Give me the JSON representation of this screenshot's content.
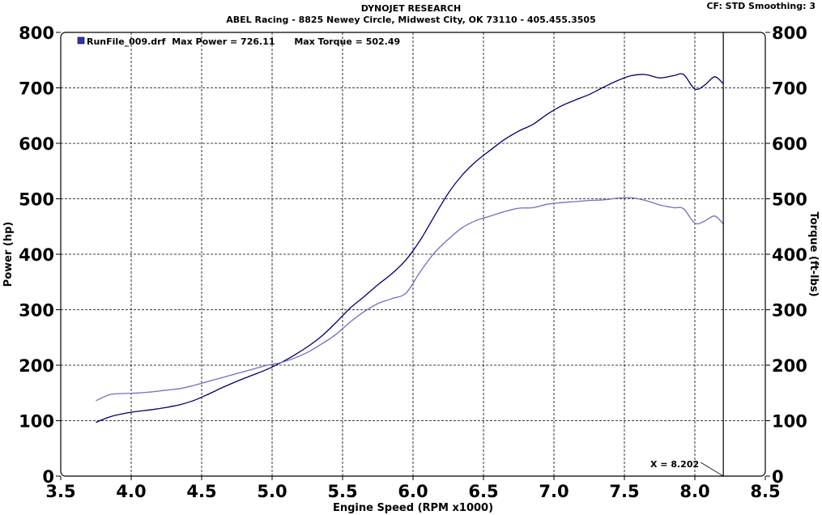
{
  "header": {
    "title": "DYNOJET RESEARCH",
    "subtitle": "ABEL Racing - 8825 Newey Circle, Midwest City, OK 73110 - 405.455.3505",
    "settings": "CF: STD   Smoothing: 3"
  },
  "chart_data": {
    "type": "line",
    "xlabel": "Engine Speed (RPM x1000)",
    "ylabel": "Power (hp)",
    "y2label": "Torque (ft-lbs)",
    "xlim": [
      3.5,
      8.5
    ],
    "ylim": [
      0,
      800
    ],
    "y2lim": [
      0,
      800
    ],
    "x_ticks": [
      "3.5",
      "4.0",
      "4.5",
      "5.0",
      "5.5",
      "6.0",
      "6.5",
      "7.0",
      "7.5",
      "8.0",
      "8.5"
    ],
    "y_ticks": [
      "0",
      "100",
      "200",
      "300",
      "400",
      "500",
      "600",
      "700",
      "800"
    ],
    "grid": true,
    "legend": {
      "run_file": "RunFile_009.drf",
      "max_power_label": "Max Power = 726.11",
      "max_torque_label": "Max Torque = 502.49",
      "position": "top-left"
    },
    "cursor": {
      "x": 8.202,
      "label": "X = 8.202"
    },
    "series": [
      {
        "name": "Power",
        "color": "#00006e",
        "x": [
          3.75,
          3.85,
          3.95,
          4.05,
          4.15,
          4.25,
          4.35,
          4.45,
          4.55,
          4.65,
          4.75,
          4.85,
          4.95,
          5.05,
          5.15,
          5.25,
          5.35,
          5.45,
          5.55,
          5.65,
          5.75,
          5.85,
          5.95,
          6.05,
          6.15,
          6.25,
          6.35,
          6.45,
          6.55,
          6.65,
          6.75,
          6.85,
          6.95,
          7.05,
          7.15,
          7.25,
          7.35,
          7.45,
          7.55,
          7.65,
          7.75,
          7.85,
          7.92,
          8.0,
          8.07,
          8.14,
          8.2
        ],
        "y": [
          97,
          107,
          113,
          117,
          120,
          124,
          129,
          137,
          148,
          160,
          171,
          181,
          191,
          203,
          217,
          233,
          252,
          276,
          302,
          323,
          345,
          365,
          390,
          425,
          468,
          510,
          543,
          568,
          588,
          607,
          622,
          634,
          652,
          667,
          678,
          688,
          701,
          713,
          722,
          724,
          718,
          722,
          724,
          698,
          705,
          720,
          708
        ]
      },
      {
        "name": "Torque",
        "color": "#7070c0",
        "x": [
          3.75,
          3.85,
          3.95,
          4.05,
          4.15,
          4.25,
          4.35,
          4.45,
          4.55,
          4.65,
          4.75,
          4.85,
          4.95,
          5.05,
          5.15,
          5.25,
          5.35,
          5.45,
          5.55,
          5.65,
          5.75,
          5.85,
          5.95,
          6.05,
          6.15,
          6.25,
          6.35,
          6.45,
          6.55,
          6.65,
          6.75,
          6.85,
          6.95,
          7.05,
          7.15,
          7.25,
          7.35,
          7.45,
          7.55,
          7.65,
          7.75,
          7.85,
          7.92,
          8.0,
          8.07,
          8.14,
          8.2
        ],
        "y": [
          136,
          147,
          149,
          150,
          152,
          155,
          158,
          164,
          171,
          178,
          185,
          192,
          199,
          204,
          212,
          223,
          238,
          255,
          277,
          296,
          311,
          320,
          330,
          368,
          402,
          427,
          448,
          461,
          469,
          477,
          483,
          484,
          490,
          493,
          495,
          497,
          498,
          501,
          502,
          497,
          489,
          484,
          482,
          456,
          460,
          469,
          455
        ]
      }
    ]
  }
}
